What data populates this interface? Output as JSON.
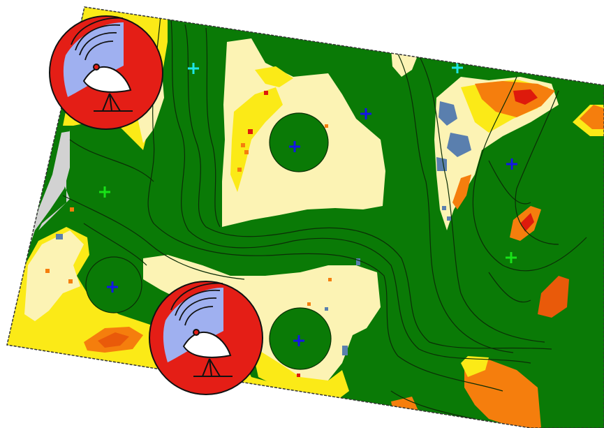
{
  "map": {
    "colors": {
      "background": "#ffffff",
      "border": "#333333",
      "green_zone": "#0a7a06",
      "contour_line": "#0b2d06",
      "light_yellow": "#fcf3b4",
      "yellow": "#fbea17",
      "orange": "#f57e0d",
      "dark_orange": "#e95a0a",
      "red": "#de1a0c",
      "slate_blue": "#5a7fae",
      "gray": "#d2d2d2",
      "marker_blue": "#1414e8",
      "marker_green": "#18e318",
      "marker_cyan": "#1ee6e6",
      "antenna_badge_red": "#e41e16",
      "antenna_badge_lavender": "#9fb0f0"
    },
    "markers": [
      {
        "name": "marker-cyan-1",
        "color": "marker_cyan"
      },
      {
        "name": "marker-cyan-2",
        "color": "marker_cyan"
      },
      {
        "name": "marker-blue-1",
        "color": "marker_blue"
      },
      {
        "name": "marker-blue-2",
        "color": "marker_blue"
      },
      {
        "name": "marker-blue-3",
        "color": "marker_blue"
      },
      {
        "name": "marker-blue-4",
        "color": "marker_blue"
      },
      {
        "name": "marker-blue-5",
        "color": "marker_blue"
      },
      {
        "name": "marker-green-1",
        "color": "marker_green"
      },
      {
        "name": "marker-green-2",
        "color": "marker_green"
      }
    ],
    "antenna_icons": [
      {
        "name": "satellite-dish-icon-1",
        "icon": "satellite-dish-icon"
      },
      {
        "name": "satellite-dish-icon-2",
        "icon": "satellite-dish-icon"
      }
    ]
  }
}
